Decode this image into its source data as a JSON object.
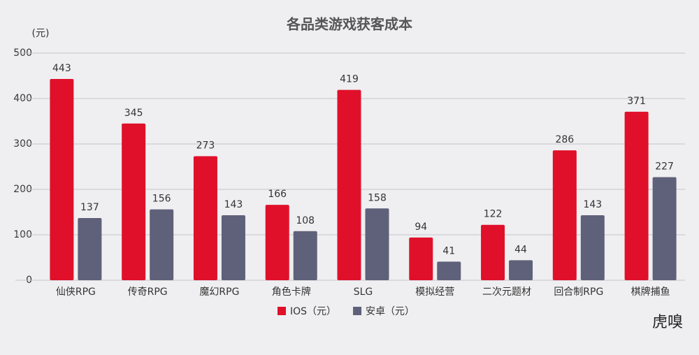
{
  "chart_data": {
    "type": "bar",
    "title": "各品类游戏获客成本",
    "y_unit_label": "(元)",
    "categories": [
      "仙侠RPG",
      "传奇RPG",
      "魔幻RPG",
      "角色卡牌",
      "SLG",
      "模拟经营",
      "二次元题材",
      "回合制RPG",
      "棋牌捕鱼"
    ],
    "series": [
      {
        "name": "IOS（元）",
        "color": "#e0102a",
        "values": [
          443,
          345,
          273,
          166,
          419,
          94,
          122,
          286,
          371
        ]
      },
      {
        "name": "安卓（元）",
        "color": "#5f6079",
        "values": [
          137,
          156,
          143,
          108,
          158,
          41,
          44,
          143,
          227
        ]
      }
    ],
    "ylim": [
      0,
      500
    ],
    "yticks": [
      0,
      100,
      200,
      300,
      400,
      500
    ],
    "grid": true,
    "legend": "bottom",
    "watermark": "虎嗅"
  }
}
